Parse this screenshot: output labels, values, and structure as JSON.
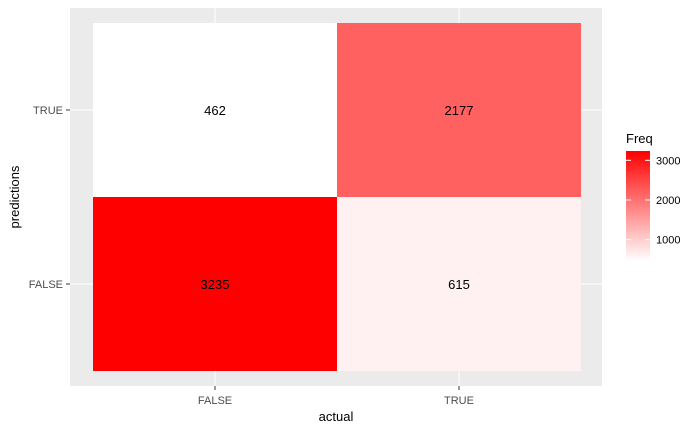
{
  "chart_data": {
    "type": "heatmap",
    "xlabel": "actual",
    "ylabel": "predictions",
    "x_categories": [
      "FALSE",
      "TRUE"
    ],
    "y_categories": [
      "FALSE",
      "TRUE"
    ],
    "cells": [
      {
        "x": "FALSE",
        "y": "TRUE",
        "value": 462,
        "label": "462"
      },
      {
        "x": "TRUE",
        "y": "TRUE",
        "value": 2177,
        "label": "2177"
      },
      {
        "x": "FALSE",
        "y": "FALSE",
        "value": 3235,
        "label": "3235"
      },
      {
        "x": "TRUE",
        "y": "FALSE",
        "value": 615,
        "label": "615"
      }
    ],
    "color_scale": {
      "low": "#ffffff",
      "high": "#ff0000",
      "min": 462,
      "max": 3235
    },
    "legend": {
      "title": "Freq",
      "placement": "right",
      "ticks": [
        {
          "value": 1000,
          "label": "1000"
        },
        {
          "value": 2000,
          "label": "2000"
        },
        {
          "value": 3000,
          "label": "3000"
        }
      ]
    },
    "grid": true,
    "panel_background": "#ebebeb"
  }
}
